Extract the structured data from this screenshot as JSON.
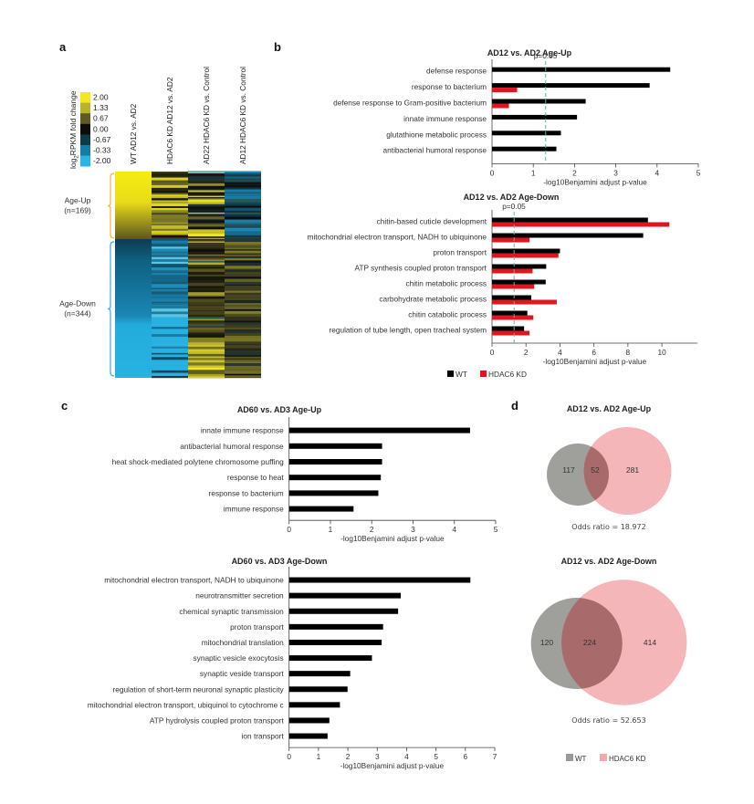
{
  "figure": {
    "panels": [
      "a",
      "b",
      "c",
      "d"
    ]
  },
  "chart_data": [
    {
      "id": "a",
      "type": "heatmap",
      "title": "",
      "color_scale": {
        "label_prefix": "log",
        "label_sub": "2",
        "label_suffix": "RPKM fold change",
        "values": [
          "2.00",
          "1.33",
          "0.67",
          "0.00",
          "-0.67",
          "-0.33",
          "-2.00"
        ],
        "colors": [
          "#f2e81a",
          "#b8b32a",
          "#5e5a22",
          "#0c0c0a",
          "#0e3a4a",
          "#127ea6",
          "#2ab4e4"
        ]
      },
      "columns": [
        "WT AD12 vs. AD2",
        "HDAC6 KD  AD12 vs. AD2",
        "AD22 HDAC6 KD vs. Control",
        "AD12 HDAC6 KD vs. Control"
      ],
      "groups": [
        {
          "name": "Age-Up",
          "n_label": "(n=169)",
          "n": 169,
          "color": "#f0b43c"
        },
        {
          "name": "Age-Down",
          "n_label": "(n=344)",
          "n": 344,
          "color": "#3aa8dc"
        }
      ]
    },
    {
      "id": "b-up",
      "type": "bar",
      "orientation": "horizontal",
      "title": "AD12 vs. AD2 Age-Up",
      "xlabel": "-log10Benjamini adjust p-value",
      "xlim": [
        0,
        5
      ],
      "xticks": [
        "0",
        "1",
        "2",
        "3",
        "4",
        "5"
      ],
      "threshold": {
        "label": "p=0.05",
        "value": 1.3
      },
      "categories": [
        "defense response",
        "response to bacterium",
        "defense response to Gram-positive bacterium",
        "innate immune response",
        "glutathione metabolic process",
        "antibacterial humoral response"
      ],
      "series": [
        {
          "name": "WT",
          "color": "#000000",
          "values": [
            4.32,
            3.82,
            2.27,
            2.06,
            1.67,
            1.56
          ]
        },
        {
          "name": "HDAC6 KD",
          "color": "#e0161e",
          "values": [
            null,
            0.61,
            0.41,
            null,
            null,
            null
          ]
        }
      ]
    },
    {
      "id": "b-down",
      "type": "bar",
      "orientation": "horizontal",
      "title": "AD12 vs. AD2 Age-Down",
      "xlabel": "-log10Benjamini adjust p-value",
      "xlim": [
        0,
        11
      ],
      "xticks": [
        "0",
        "2",
        "4",
        "6",
        "8",
        "10"
      ],
      "threshold": {
        "label": "p=0.05",
        "value": 1.3
      },
      "categories": [
        "chitin-based cuticle development",
        "mitochondrial electron transport, NADH to ubiquinone",
        "proton transport",
        "ATP synthesis coupled proton transport",
        "chitin metabolic process",
        "carbohydrate metabolic process",
        "chitin catabolic process",
        "regulation of tube length, open tracheal system"
      ],
      "series": [
        {
          "name": "WT",
          "color": "#000000",
          "values": [
            9.18,
            8.9,
            4.0,
            3.19,
            3.16,
            2.31,
            2.08,
            1.89
          ]
        },
        {
          "name": "HDAC6 KD",
          "color": "#e0161e",
          "values": [
            10.44,
            2.21,
            3.91,
            2.39,
            2.48,
            3.81,
            2.43,
            2.21
          ]
        }
      ],
      "legend": [
        "WT",
        "HDAC6 KD"
      ],
      "legend_position": "bottom-left"
    },
    {
      "id": "c-up",
      "type": "bar",
      "orientation": "horizontal",
      "title": "AD60 vs. AD3 Age-Up",
      "xlabel": "-log10Benjamini adjust p-value",
      "xlim": [
        0,
        5
      ],
      "xticks": [
        "0",
        "1",
        "2",
        "3",
        "4",
        "5"
      ],
      "categories": [
        "innate immune response",
        "antibacterial humoral response",
        "heat shock-mediated polytene chromosome puffing",
        "response to heat",
        "response to bacterium",
        "immune response"
      ],
      "series": [
        {
          "name": "WT",
          "color": "#000000",
          "values": [
            4.38,
            2.25,
            2.25,
            2.22,
            2.16,
            1.56
          ]
        }
      ]
    },
    {
      "id": "c-down",
      "type": "bar",
      "orientation": "horizontal",
      "title": "AD60 vs. AD3 Age-Down",
      "xlabel": "-log10Benjamini adjust p-value",
      "xlim": [
        0,
        7
      ],
      "xticks": [
        "0",
        "1",
        "2",
        "3",
        "4",
        "5",
        "6",
        "7"
      ],
      "categories": [
        "mitochondrial electron transport, NADH to ubiquinone",
        "neurotransmitter secretion",
        "chemical synaptic transmission",
        "proton transport",
        "mitochondrial translation",
        "synaptic vesicle exocytosis",
        "synaptic veside transport",
        "regulation of short-term neuronal synaptic plasticity",
        "mitochondrial electron transport, ubiquinol to cytochrome c",
        "ATP hydrolysis coupled proton transport",
        "ion transport"
      ],
      "series": [
        {
          "name": "WT",
          "color": "#000000",
          "values": [
            6.17,
            3.8,
            3.71,
            3.2,
            3.15,
            2.82,
            2.08,
            1.99,
            1.73,
            1.37,
            1.31
          ]
        }
      ]
    },
    {
      "id": "d-up",
      "type": "venn",
      "title": "AD12 vs. AD2 Age-Up",
      "sets": [
        {
          "name": "WT",
          "only": 117,
          "color": "#9a9a96"
        },
        {
          "name": "HDAC6 KD",
          "only": 281,
          "color": "#f2a9ad"
        }
      ],
      "overlap": 52,
      "annotation": "Odds ratio = 18.972"
    },
    {
      "id": "d-down",
      "type": "venn",
      "title": "AD12 vs. AD2 Age-Down",
      "sets": [
        {
          "name": "WT",
          "only": 120,
          "color": "#9a9a96"
        },
        {
          "name": "HDAC6 KD",
          "only": 414,
          "color": "#f2a9ad"
        }
      ],
      "overlap": 224,
      "annotation": "Odds ratio = 52.653",
      "legend": [
        "WT",
        "HDAC6 KD"
      ],
      "legend_position": "bottom"
    }
  ]
}
